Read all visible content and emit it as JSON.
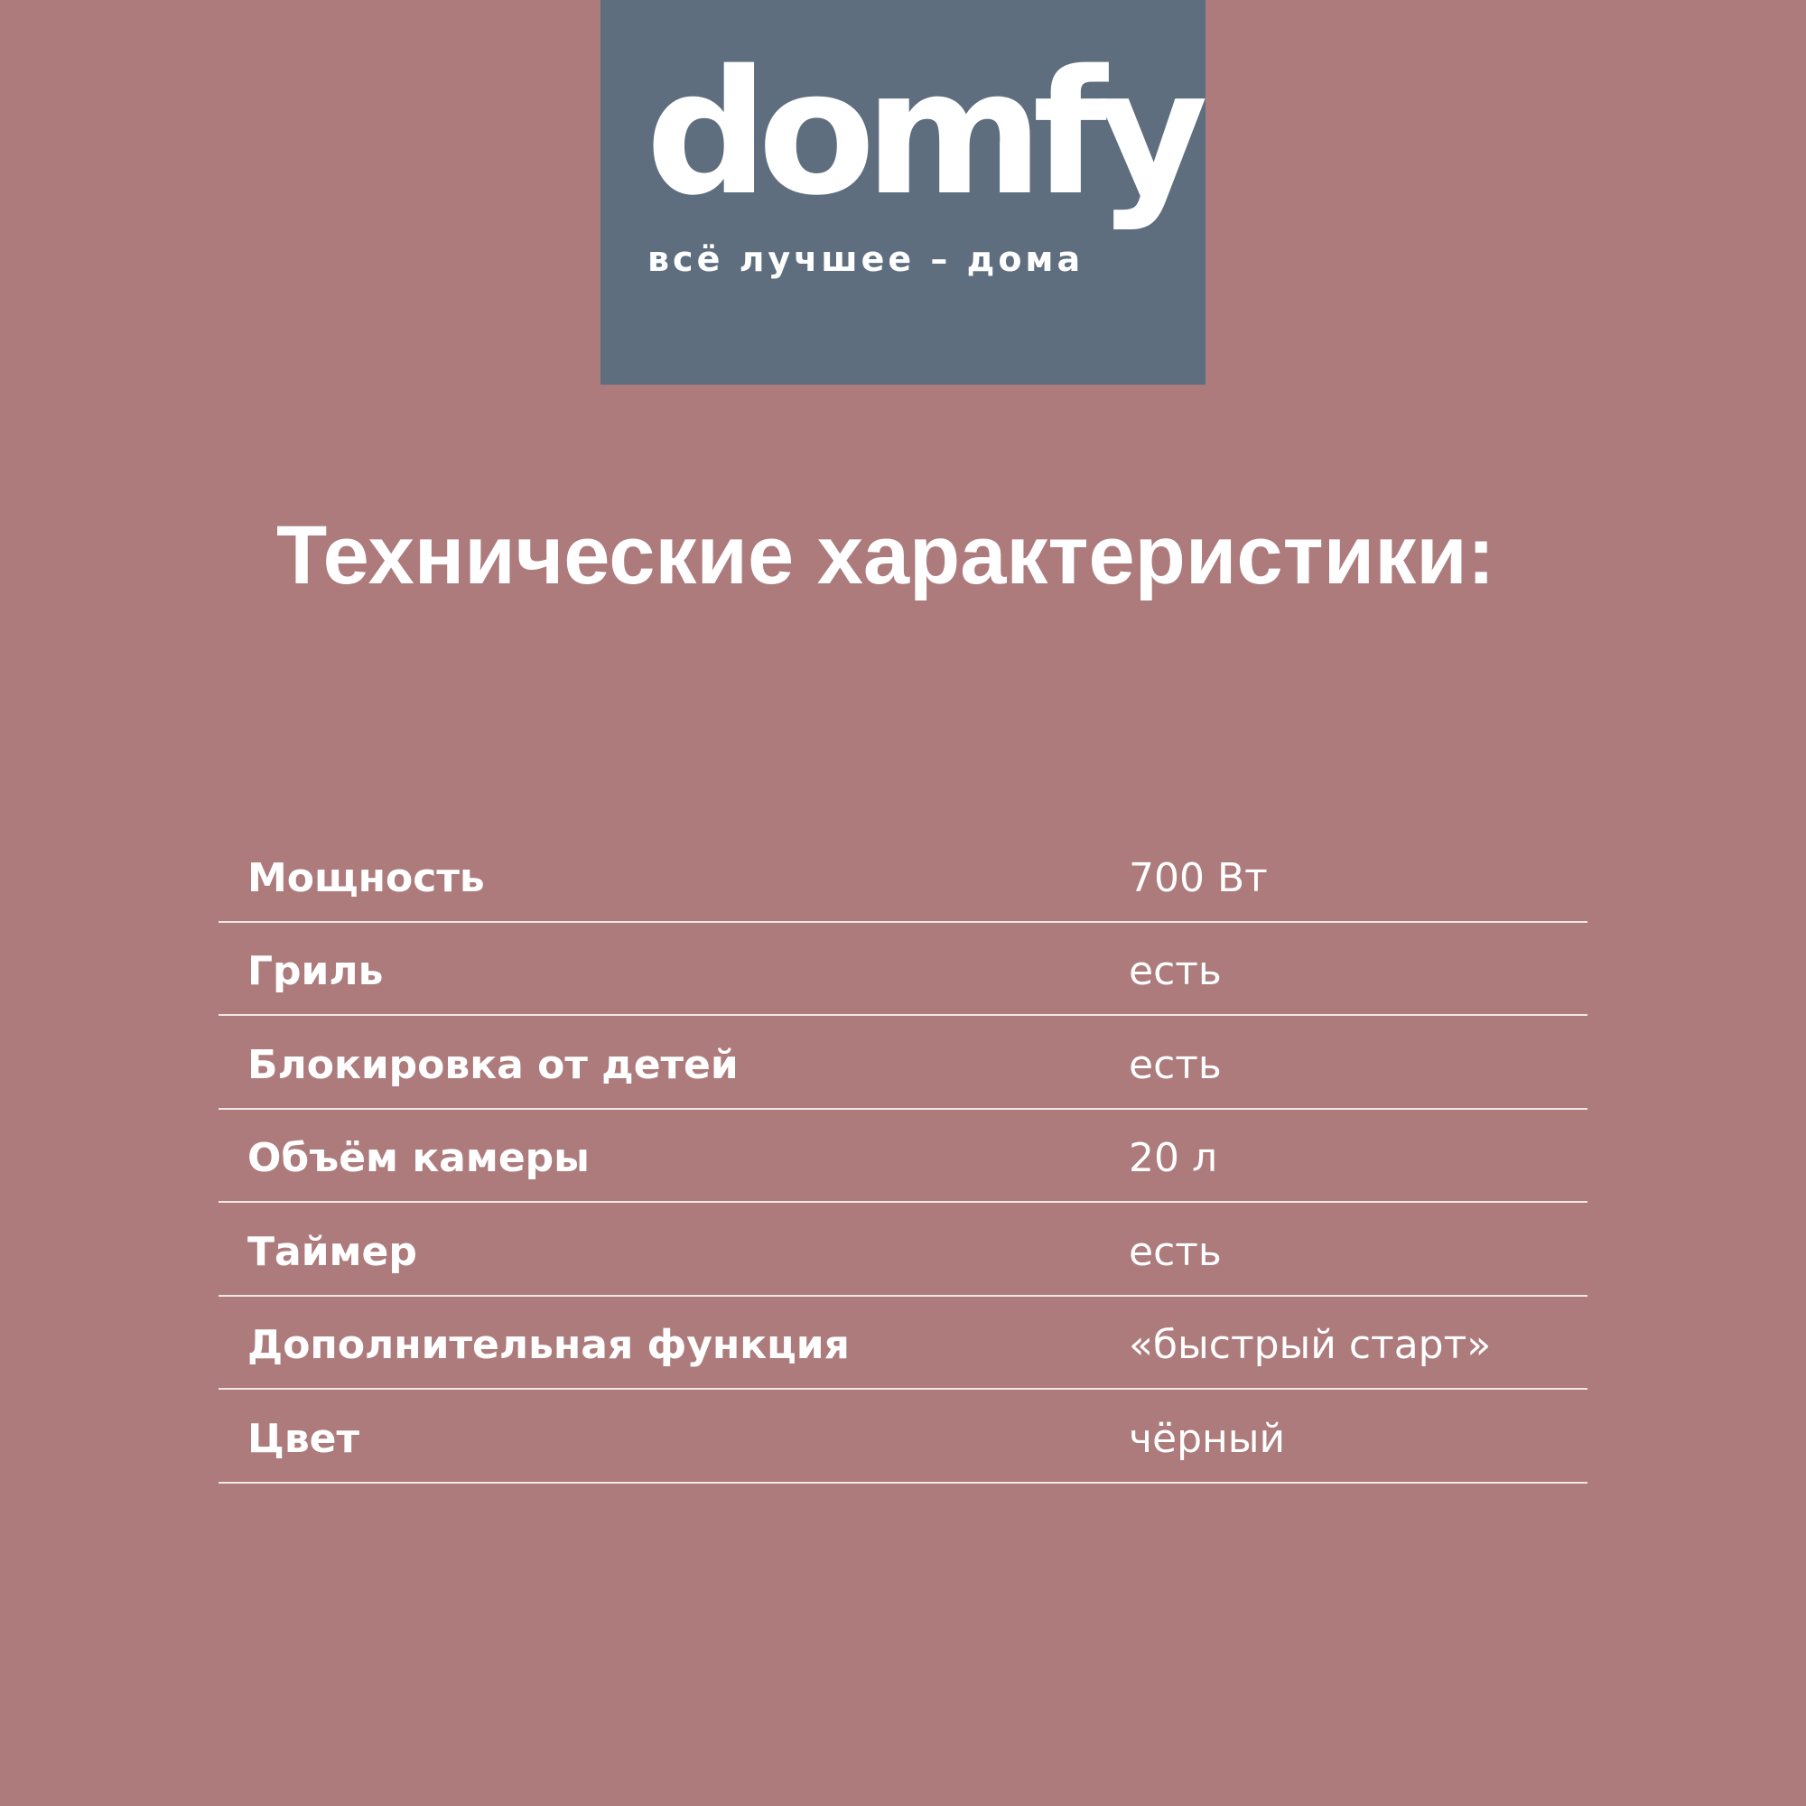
{
  "logo": {
    "brand": "domfy",
    "tagline": "всё лучшее – дома"
  },
  "colors": {
    "background": "#ad7b7c",
    "logo_box": "#5e6e7f",
    "text": "#ffffff"
  },
  "title": "Технические характеристики:",
  "specs": [
    {
      "label": "Мощность",
      "value": "700 Вт"
    },
    {
      "label": "Гриль",
      "value": "есть"
    },
    {
      "label": "Блокировка от детей",
      "value": "есть"
    },
    {
      "label": "Объём камеры",
      "value": "20 л"
    },
    {
      "label": "Таймер",
      "value": "есть"
    },
    {
      "label": "Дополнительная функция",
      "value": "«быстрый старт»"
    },
    {
      "label": "Цвет",
      "value": "чёрный"
    }
  ]
}
